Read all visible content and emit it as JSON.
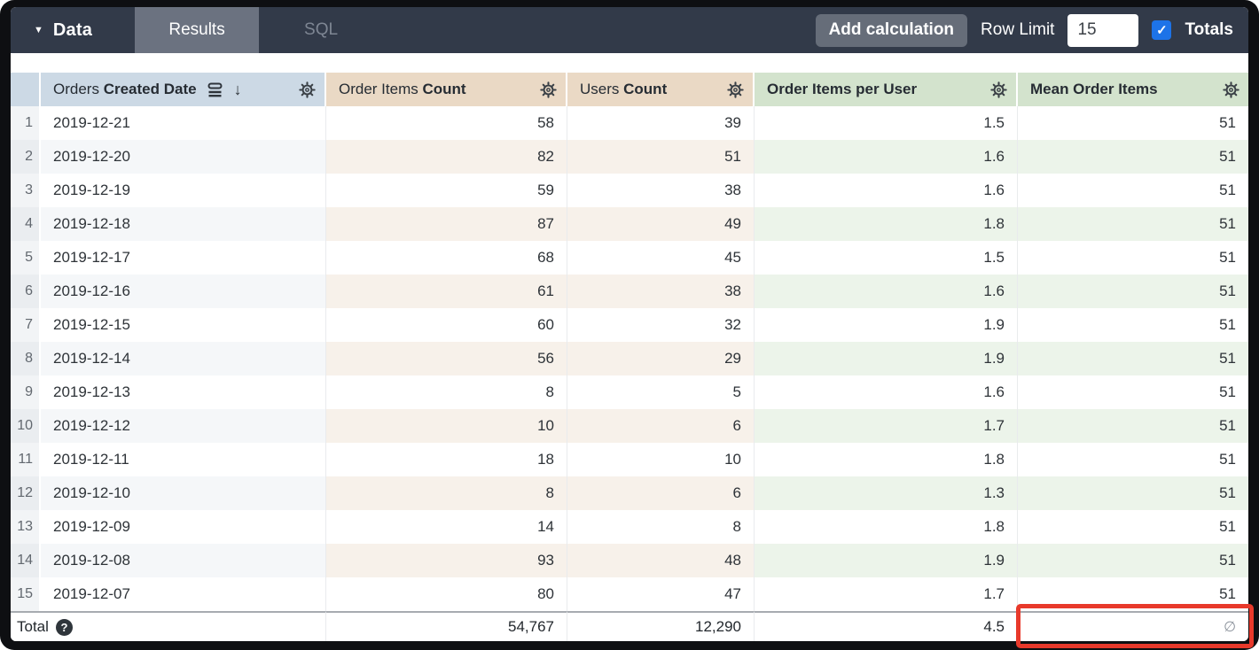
{
  "topbar": {
    "data_label": "Data",
    "tabs": [
      {
        "label": "Results",
        "active": true
      },
      {
        "label": "SQL",
        "active": false
      }
    ],
    "add_calculation_label": "Add calculation",
    "row_limit_label": "Row Limit",
    "row_limit_value": "15",
    "totals_label": "Totals",
    "totals_checked": true
  },
  "icons": {
    "caret_down": "▼",
    "sort_arrow_desc": "↓",
    "check": "✓",
    "help": "?"
  },
  "table": {
    "columns": [
      {
        "id": "orders-created-date",
        "label_regular": "Orders",
        "label_bold": "Created Date",
        "type": "dimension",
        "sorted": "desc"
      },
      {
        "id": "order-items-count",
        "label_regular": "Order Items",
        "label_bold": "Count",
        "type": "measure"
      },
      {
        "id": "users-count",
        "label_regular": "Users",
        "label_bold": "Count",
        "type": "measure"
      },
      {
        "id": "order-items-per-user",
        "label_regular": "",
        "label_bold": "Order Items per User",
        "type": "table_calculation"
      },
      {
        "id": "mean-order-items",
        "label_regular": "",
        "label_bold": "Mean Order Items",
        "type": "table_calculation"
      }
    ],
    "rows": [
      [
        "1",
        "2019-12-21",
        "58",
        "39",
        "1.5",
        "51"
      ],
      [
        "2",
        "2019-12-20",
        "82",
        "51",
        "1.6",
        "51"
      ],
      [
        "3",
        "2019-12-19",
        "59",
        "38",
        "1.6",
        "51"
      ],
      [
        "4",
        "2019-12-18",
        "87",
        "49",
        "1.8",
        "51"
      ],
      [
        "5",
        "2019-12-17",
        "68",
        "45",
        "1.5",
        "51"
      ],
      [
        "6",
        "2019-12-16",
        "61",
        "38",
        "1.6",
        "51"
      ],
      [
        "7",
        "2019-12-15",
        "60",
        "32",
        "1.9",
        "51"
      ],
      [
        "8",
        "2019-12-14",
        "56",
        "29",
        "1.9",
        "51"
      ],
      [
        "9",
        "2019-12-13",
        "8",
        "5",
        "1.6",
        "51"
      ],
      [
        "10",
        "2019-12-12",
        "10",
        "6",
        "1.7",
        "51"
      ],
      [
        "11",
        "2019-12-11",
        "18",
        "10",
        "1.8",
        "51"
      ],
      [
        "12",
        "2019-12-10",
        "8",
        "6",
        "1.3",
        "51"
      ],
      [
        "13",
        "2019-12-09",
        "14",
        "8",
        "1.8",
        "51"
      ],
      [
        "14",
        "2019-12-08",
        "93",
        "48",
        "1.9",
        "51"
      ],
      [
        "15",
        "2019-12-07",
        "80",
        "47",
        "1.7",
        "51"
      ]
    ],
    "total": {
      "label": "Total",
      "values": [
        "54,767",
        "12,290",
        "4.5",
        "∅"
      ]
    }
  },
  "colors": {
    "topbar_bg": "#323a49",
    "active_tab_bg": "#6b7280",
    "dimension_header_bg": "#ccd9e5",
    "measure_header_bg": "#ead9c5",
    "calculation_header_bg": "#d3e3cd",
    "checkbox_blue": "#1d73e8",
    "annotation_red": "#e8392b"
  }
}
